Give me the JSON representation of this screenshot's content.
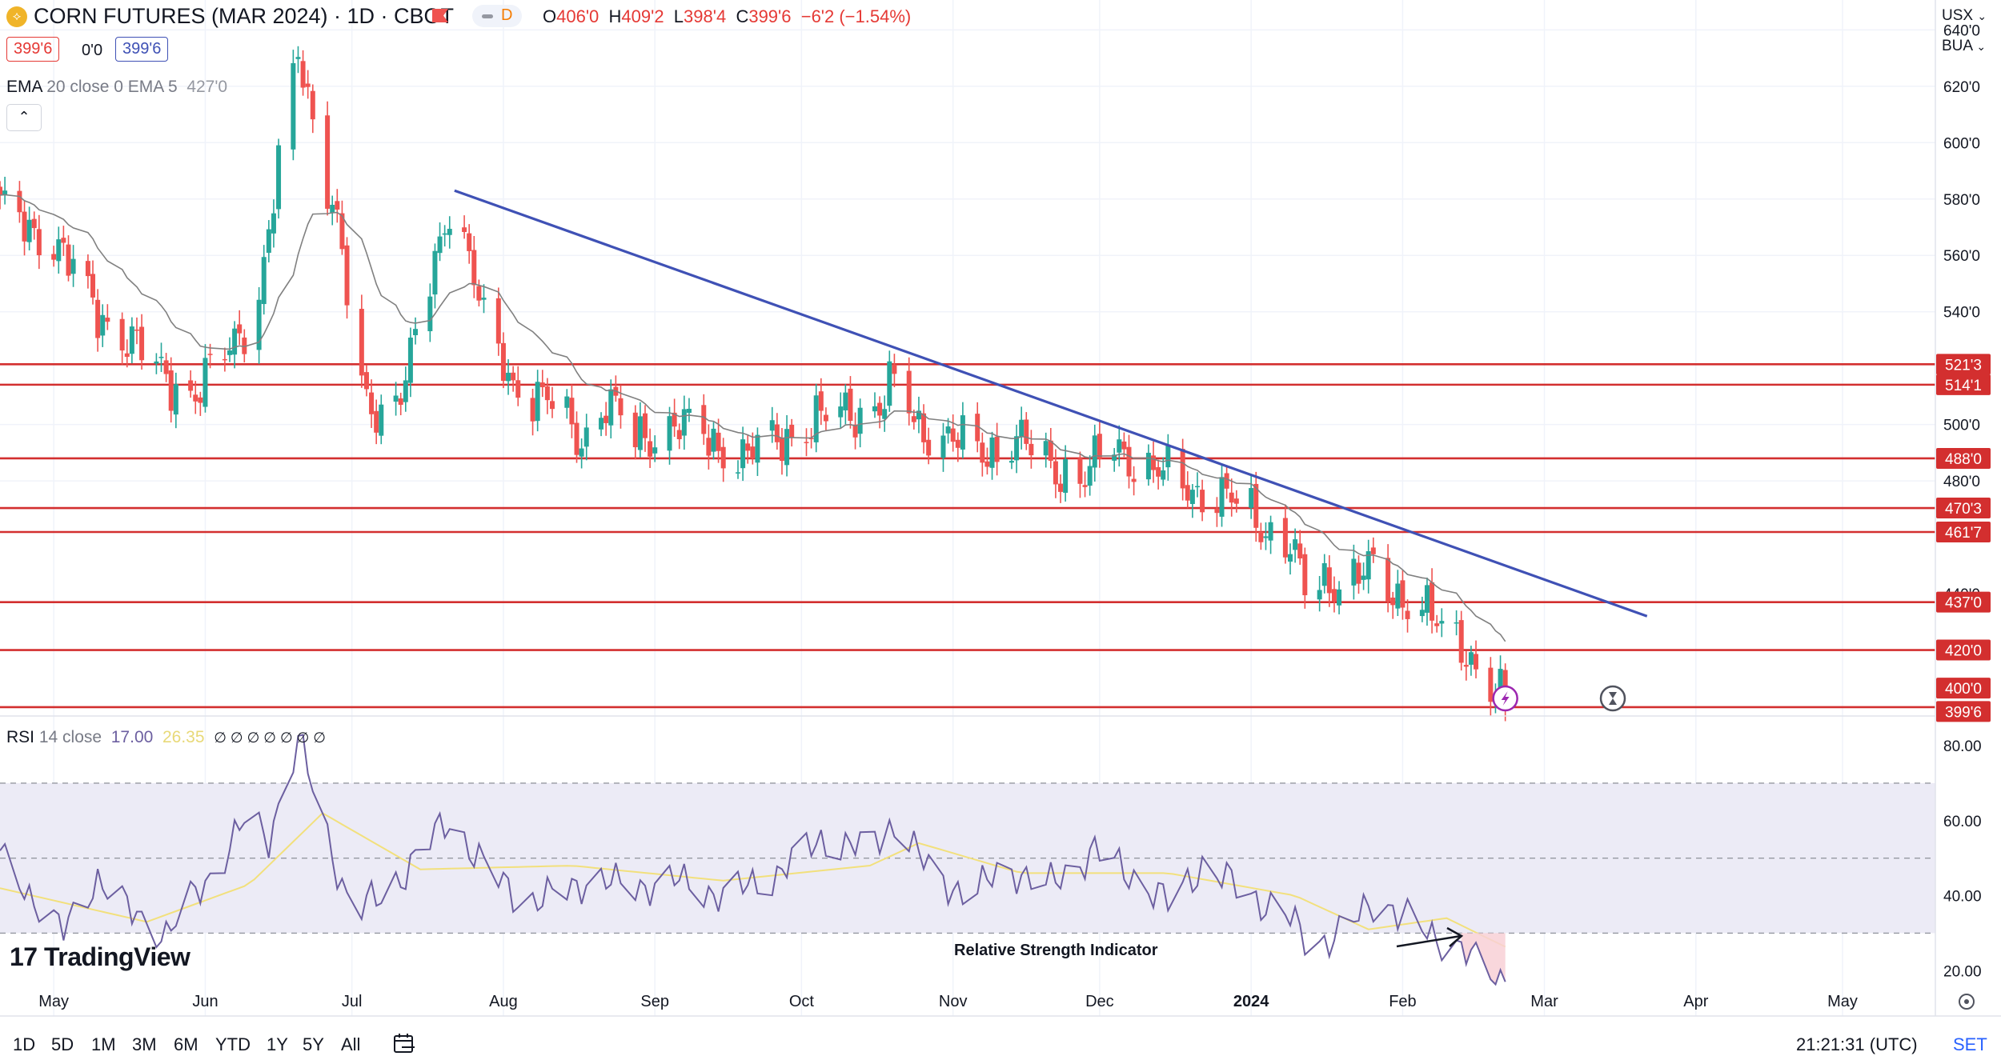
{
  "header": {
    "symbol_icon": "corn-coin-icon",
    "symbol_glyph": "⟡",
    "title": "CORN FUTURES (MAR 2024) · 1D · CBOT",
    "delay_badge": "D",
    "ohlc": {
      "o_label": "O",
      "o": "406'0",
      "h_label": "H",
      "h": "409'2",
      "l_label": "L",
      "l": "398'4",
      "c_label": "C",
      "c": "399'6",
      "chg": "−6'2 (−1.54%)"
    },
    "sell_price": "399'6",
    "spread": "0'0",
    "buy_price": "399'6",
    "currency_select": "USX",
    "unit_select": "BUA"
  },
  "indicators": {
    "ema_label": "EMA",
    "ema_params": "20 close 0 EMA 5",
    "ema_value": "427'0",
    "collapse_glyph": "⌃",
    "rsi_label": "RSI",
    "rsi_params": "14 close",
    "rsi_value": "17.00",
    "rsi_ma_value": "26.35",
    "rsi_extra": "∅ ∅ ∅ ∅ ∅ ∅ ∅"
  },
  "annotation": "Relative Strength Indicator",
  "branding": {
    "logo_text": "TradingView",
    "logo_glyph": "17"
  },
  "toolbar": {
    "timeframes": [
      "1D",
      "5D",
      "1M",
      "3M",
      "6M",
      "YTD",
      "1Y",
      "5Y",
      "All"
    ],
    "calendar_icon": "calendar-goto-icon",
    "clock": "21:21:31 (UTC)",
    "settings_label": "SET"
  },
  "colors": {
    "up": "#26a69a",
    "down": "#ef5350",
    "trendline": "#3f51b5",
    "level": "#d32f2f",
    "rsi_line": "#6c5fa0",
    "rsi_ma": "#f5e58a",
    "ema_line": "#808080",
    "rsi_band": "#ecebf6"
  },
  "chart_data": [
    {
      "type": "candlestick",
      "title": "CORN FUTURES (MAR 2024)",
      "price_scale": "USX",
      "y_ticks": [
        "640'0",
        "620'0",
        "600'0",
        "580'0",
        "560'0",
        "540'0",
        "500'0",
        "480'0"
      ],
      "y_tick_values": [
        640,
        620,
        600,
        580,
        560,
        540,
        500,
        480
      ],
      "ylim": [
        396.6,
        650.6
      ],
      "x_months": [
        "May",
        "Jun",
        "Jul",
        "Aug",
        "Sep",
        "Oct",
        "Nov",
        "Dec",
        "2024",
        "Feb",
        "Mar",
        "Apr",
        "May"
      ],
      "x_month_dates": [
        "2023-05-01",
        "2023-06-01",
        "2023-07-01",
        "2023-08-01",
        "2023-09-01",
        "2023-10-01",
        "2023-11-01",
        "2023-12-01",
        "2024-01-01",
        "2024-02-01",
        "2024-03-01",
        "2024-04-01",
        "2024-05-01"
      ],
      "xlim": [
        "2023-04-20",
        "2024-05-20"
      ],
      "series_points": [
        {
          "date": "2023-04-20",
          "close": 576
        },
        {
          "date": "2023-05-01",
          "close": 565
        },
        {
          "date": "2023-05-10",
          "close": 540
        },
        {
          "date": "2023-05-22",
          "close": 520
        },
        {
          "date": "2023-05-30",
          "close": 510
        },
        {
          "date": "2023-06-05",
          "close": 525
        },
        {
          "date": "2023-06-12",
          "close": 545
        },
        {
          "date": "2023-06-16",
          "close": 590
        },
        {
          "date": "2023-06-20",
          "close": 633
        },
        {
          "date": "2023-06-23",
          "close": 610
        },
        {
          "date": "2023-06-28",
          "close": 570
        },
        {
          "date": "2023-07-03",
          "close": 510
        },
        {
          "date": "2023-07-07",
          "close": 505
        },
        {
          "date": "2023-07-12",
          "close": 515
        },
        {
          "date": "2023-07-17",
          "close": 550
        },
        {
          "date": "2023-07-21",
          "close": 580
        },
        {
          "date": "2023-07-25",
          "close": 560
        },
        {
          "date": "2023-07-28",
          "close": 535
        },
        {
          "date": "2023-08-03",
          "close": 515
        },
        {
          "date": "2023-08-10",
          "close": 508
        },
        {
          "date": "2023-08-17",
          "close": 495
        },
        {
          "date": "2023-08-22",
          "close": 508
        },
        {
          "date": "2023-08-28",
          "close": 495
        },
        {
          "date": "2023-09-05",
          "close": 500
        },
        {
          "date": "2023-09-12",
          "close": 495
        },
        {
          "date": "2023-09-19",
          "close": 488
        },
        {
          "date": "2023-09-26",
          "close": 495
        },
        {
          "date": "2023-10-03",
          "close": 500
        },
        {
          "date": "2023-10-10",
          "close": 505
        },
        {
          "date": "2023-10-17",
          "close": 506
        },
        {
          "date": "2023-10-20",
          "close": 514
        },
        {
          "date": "2023-10-25",
          "close": 500
        },
        {
          "date": "2023-10-31",
          "close": 495
        },
        {
          "date": "2023-11-07",
          "close": 490
        },
        {
          "date": "2023-11-14",
          "close": 495
        },
        {
          "date": "2023-11-21",
          "close": 485
        },
        {
          "date": "2023-11-28",
          "close": 482
        },
        {
          "date": "2023-12-04",
          "close": 492
        },
        {
          "date": "2023-12-11",
          "close": 485
        },
        {
          "date": "2023-12-18",
          "close": 478
        },
        {
          "date": "2023-12-26",
          "close": 475
        },
        {
          "date": "2024-01-02",
          "close": 466
        },
        {
          "date": "2024-01-09",
          "close": 458
        },
        {
          "date": "2024-01-12",
          "close": 440
        },
        {
          "date": "2024-01-19",
          "close": 446
        },
        {
          "date": "2024-01-25",
          "close": 448
        },
        {
          "date": "2024-01-29",
          "close": 440
        },
        {
          "date": "2024-02-05",
          "close": 438
        },
        {
          "date": "2024-02-09",
          "close": 425
        },
        {
          "date": "2024-02-14",
          "close": 420
        },
        {
          "date": "2024-02-20",
          "close": 406
        },
        {
          "date": "2024-02-22",
          "close": 399.75
        }
      ],
      "ema": {
        "name": "EMA",
        "last": "427'0"
      },
      "trendline": [
        {
          "date": "2023-07-22",
          "price": 583
        },
        {
          "date": "2024-03-22",
          "price": 432
        }
      ],
      "levels": [
        {
          "label": "521'3",
          "value": 521.375
        },
        {
          "label": "514'1",
          "value": 514.125
        },
        {
          "label": "488'0",
          "value": 488
        },
        {
          "label": "470'3",
          "value": 470.375
        },
        {
          "label": "461'7",
          "value": 461.875
        },
        {
          "label": "437'0",
          "value": 437
        },
        {
          "label": "420'0",
          "value": 420
        },
        {
          "label": "399'6",
          "value": 399.75
        }
      ],
      "extra_price_labels": [
        {
          "label": "400'0",
          "value": 400
        }
      ],
      "overlapped_tick": "440'0",
      "markers": [
        {
          "date": "2024-02-22",
          "icon": "lightning-icon"
        },
        {
          "date": "2024-03-15",
          "icon": "hourglass-icon"
        }
      ]
    },
    {
      "type": "line",
      "title": "RSI 14 close",
      "y_ticks": [
        "80.00",
        "60.00",
        "40.00",
        "20.00"
      ],
      "y_tick_values": [
        80,
        60,
        40,
        20
      ],
      "ylim": [
        7.9,
        87.9
      ],
      "bands": {
        "upper": 70,
        "middle": 50,
        "lower": 30
      },
      "series_points": [
        {
          "date": "2023-04-20",
          "rsi": 50
        },
        {
          "date": "2023-05-03",
          "rsi": 30
        },
        {
          "date": "2023-05-10",
          "rsi": 45
        },
        {
          "date": "2023-05-17",
          "rsi": 35
        },
        {
          "date": "2023-05-24",
          "rsi": 30
        },
        {
          "date": "2023-06-02",
          "rsi": 45
        },
        {
          "date": "2023-06-09",
          "rsi": 60
        },
        {
          "date": "2023-06-14",
          "rsi": 55
        },
        {
          "date": "2023-06-20",
          "rsi": 82
        },
        {
          "date": "2023-06-26",
          "rsi": 55
        },
        {
          "date": "2023-07-01",
          "rsi": 36
        },
        {
          "date": "2023-07-08",
          "rsi": 40
        },
        {
          "date": "2023-07-15",
          "rsi": 52
        },
        {
          "date": "2023-07-21",
          "rsi": 60
        },
        {
          "date": "2023-07-28",
          "rsi": 48
        },
        {
          "date": "2023-08-05",
          "rsi": 38
        },
        {
          "date": "2023-08-12",
          "rsi": 40
        },
        {
          "date": "2023-08-19",
          "rsi": 45
        },
        {
          "date": "2023-08-26",
          "rsi": 42
        },
        {
          "date": "2023-09-05",
          "rsi": 44
        },
        {
          "date": "2023-09-15",
          "rsi": 40
        },
        {
          "date": "2023-09-25",
          "rsi": 45
        },
        {
          "date": "2023-10-05",
          "rsi": 55
        },
        {
          "date": "2023-10-15",
          "rsi": 52
        },
        {
          "date": "2023-10-20",
          "rsi": 60
        },
        {
          "date": "2023-10-28",
          "rsi": 45
        },
        {
          "date": "2023-11-05",
          "rsi": 40
        },
        {
          "date": "2023-11-12",
          "rsi": 48
        },
        {
          "date": "2023-11-20",
          "rsi": 42
        },
        {
          "date": "2023-11-30",
          "rsi": 52
        },
        {
          "date": "2023-12-08",
          "rsi": 45
        },
        {
          "date": "2023-12-15",
          "rsi": 38
        },
        {
          "date": "2023-12-22",
          "rsi": 48
        },
        {
          "date": "2024-01-01",
          "rsi": 40
        },
        {
          "date": "2024-01-08",
          "rsi": 35
        },
        {
          "date": "2024-01-13",
          "rsi": 27
        },
        {
          "date": "2024-01-20",
          "rsi": 30
        },
        {
          "date": "2024-01-27",
          "rsi": 40
        },
        {
          "date": "2024-01-31",
          "rsi": 35
        },
        {
          "date": "2024-02-06",
          "rsi": 30
        },
        {
          "date": "2024-02-12",
          "rsi": 27
        },
        {
          "date": "2024-02-16",
          "rsi": 22
        },
        {
          "date": "2024-02-22",
          "rsi": 17
        }
      ],
      "ma_points": [
        {
          "date": "2023-04-20",
          "ma": 42
        },
        {
          "date": "2023-05-20",
          "ma": 33
        },
        {
          "date": "2023-06-10",
          "ma": 43
        },
        {
          "date": "2023-06-25",
          "ma": 62
        },
        {
          "date": "2023-07-15",
          "ma": 47
        },
        {
          "date": "2023-08-15",
          "ma": 48
        },
        {
          "date": "2023-09-15",
          "ma": 44
        },
        {
          "date": "2023-10-15",
          "ma": 48
        },
        {
          "date": "2023-10-25",
          "ma": 54
        },
        {
          "date": "2023-11-15",
          "ma": 46
        },
        {
          "date": "2023-12-15",
          "ma": 46
        },
        {
          "date": "2024-01-10",
          "ma": 40
        },
        {
          "date": "2024-01-25",
          "ma": 31
        },
        {
          "date": "2024-02-10",
          "ma": 34
        },
        {
          "date": "2024-02-22",
          "ma": 26.35
        }
      ]
    }
  ]
}
